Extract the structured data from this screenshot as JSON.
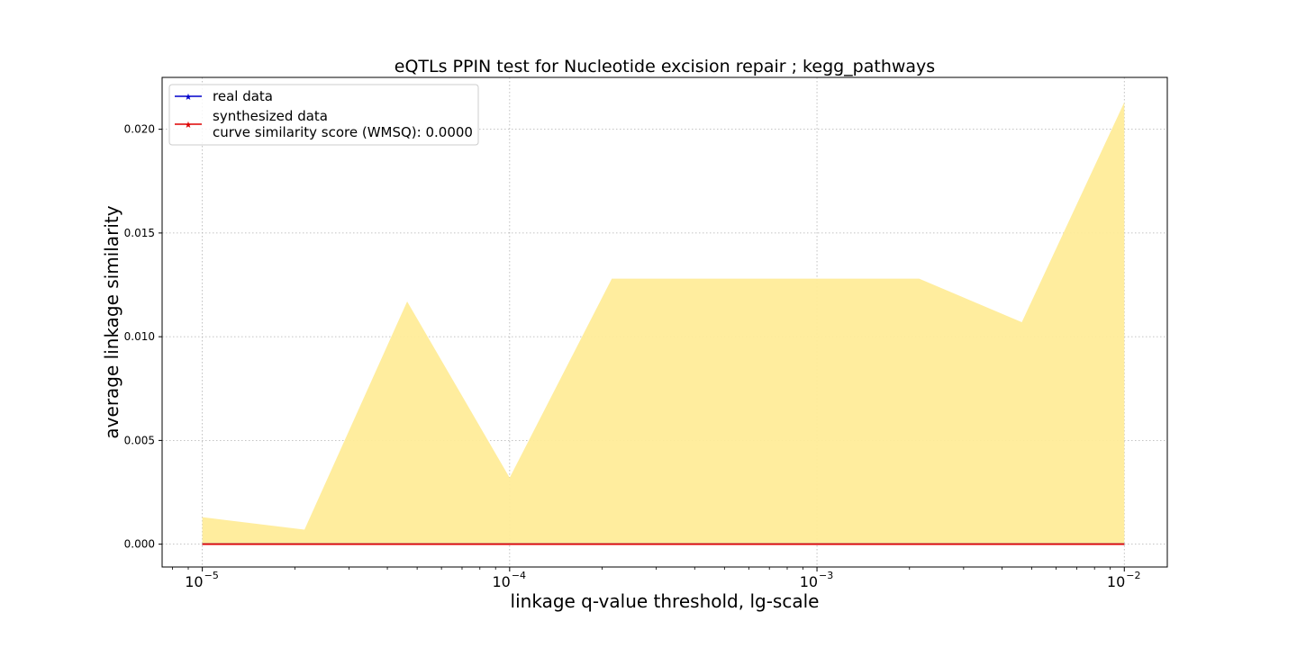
{
  "chart_data": {
    "type": "line",
    "title": "eQTLs PPIN test for Nucleotide excision repair ; kegg_pathways",
    "xlabel": "linkage q-value threshold, lg-scale",
    "ylabel": "average linkage similarity",
    "x_scale": "log",
    "xlim": [
      7.4e-06,
      0.0138
    ],
    "ylim": [
      -0.0011,
      0.0225
    ],
    "grid": true,
    "legend_position": "top-left",
    "x_ticks": [
      {
        "base": "10",
        "exp": "−5",
        "value": 1e-05
      },
      {
        "base": "10",
        "exp": "−4",
        "value": 0.0001
      },
      {
        "base": "10",
        "exp": "−3",
        "value": 0.001
      },
      {
        "base": "10",
        "exp": "−2",
        "value": 0.01
      }
    ],
    "y_ticks": [
      {
        "label": "0.000",
        "value": 0.0
      },
      {
        "label": "0.005",
        "value": 0.005
      },
      {
        "label": "0.010",
        "value": 0.01
      },
      {
        "label": "0.015",
        "value": 0.015
      },
      {
        "label": "0.020",
        "value": 0.02
      }
    ],
    "x": [
      1e-05,
      2.15e-05,
      4.64e-05,
      0.0001,
      0.000215,
      0.000464,
      0.001,
      0.00215,
      0.00464,
      0.01
    ],
    "band": {
      "color": "#ffec99",
      "lower": [
        0,
        0,
        0,
        0,
        0,
        0,
        0,
        0,
        0,
        0
      ],
      "upper": [
        0.0013,
        0.0007,
        0.0117,
        0.0032,
        0.0128,
        0.0128,
        0.0128,
        0.0128,
        0.0107,
        0.0213
      ]
    },
    "series": [
      {
        "name": "real data",
        "color": "#0000cc",
        "values": [
          0,
          0,
          0,
          0,
          0,
          0,
          0,
          0,
          0,
          0
        ]
      },
      {
        "name": "synthesized data",
        "color": "#dd0000",
        "values": [
          0,
          0,
          0,
          0,
          0,
          0,
          0,
          0,
          0,
          0
        ]
      }
    ],
    "legend_extra": "curve similarity score (WMSQ): 0.0000"
  }
}
